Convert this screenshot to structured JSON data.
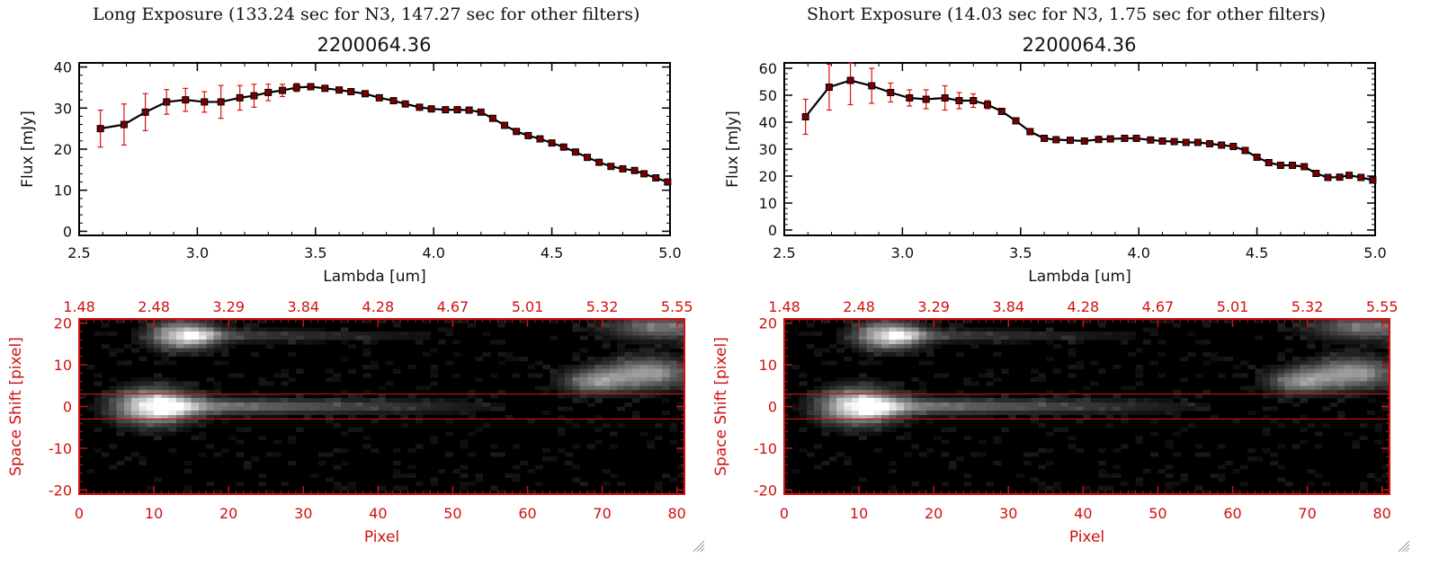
{
  "headings": {
    "left": "Long Exposure (133.24 sec for N3, 147.27 sec for other filters)",
    "right": "Short Exposure (14.03 sec for N3, 1.75 sec for other filters)"
  },
  "colors": {
    "axis_red": "#d01010",
    "error_bar": "#dd1111",
    "marker_fill": "#7a0000",
    "line": "#000000",
    "band_line": "#cc1010"
  },
  "chart_data": [
    {
      "type": "line",
      "panel": "left-spectrum",
      "title": "2200064.36",
      "xlabel": "Lambda [um]",
      "ylabel": "Flux [mJy]",
      "xlim": [
        2.5,
        5.0
      ],
      "ylim": [
        -1,
        41
      ],
      "xticks": [
        "2.5",
        "3.0",
        "3.5",
        "4.0",
        "4.5",
        "5.0"
      ],
      "xtick_values": [
        2.5,
        3.0,
        3.5,
        4.0,
        4.5,
        5.0
      ],
      "yticks": [
        "0",
        "10",
        "20",
        "30",
        "40"
      ],
      "ytick_values": [
        0,
        10,
        20,
        30,
        40
      ],
      "x": [
        2.59,
        2.69,
        2.78,
        2.87,
        2.95,
        3.03,
        3.1,
        3.18,
        3.24,
        3.3,
        3.36,
        3.42,
        3.48,
        3.54,
        3.6,
        3.65,
        3.71,
        3.77,
        3.83,
        3.88,
        3.94,
        3.99,
        4.05,
        4.1,
        4.15,
        4.2,
        4.25,
        4.3,
        4.35,
        4.4,
        4.45,
        4.5,
        4.55,
        4.6,
        4.65,
        4.7,
        4.75,
        4.8,
        4.85,
        4.89,
        4.94,
        4.99
      ],
      "y": [
        25.0,
        26.0,
        29.0,
        31.5,
        32.0,
        31.5,
        31.5,
        32.5,
        33.0,
        33.8,
        34.3,
        35.0,
        35.2,
        34.8,
        34.4,
        34.0,
        33.5,
        32.5,
        31.8,
        31.0,
        30.2,
        29.8,
        29.6,
        29.6,
        29.5,
        29.0,
        27.5,
        25.8,
        24.3,
        23.3,
        22.5,
        21.5,
        20.5,
        19.3,
        18.0,
        16.8,
        15.8,
        15.2,
        14.8,
        14.0,
        13.0,
        12.0
      ],
      "yerr": [
        4.5,
        5.0,
        4.5,
        3.0,
        2.8,
        2.5,
        4.0,
        3.0,
        2.8,
        2.0,
        1.5,
        1.0,
        0.5,
        0.4,
        0.4,
        0.4,
        0.4,
        0.4,
        0.4,
        0.4,
        0.4,
        0.4,
        0.4,
        0.4,
        0.4,
        0.4,
        0.4,
        0.4,
        0.4,
        0.4,
        0.4,
        0.4,
        0.4,
        0.4,
        0.4,
        0.4,
        0.4,
        0.4,
        0.4,
        0.4,
        0.4,
        0.6
      ]
    },
    {
      "type": "line",
      "panel": "right-spectrum",
      "title": "2200064.36",
      "xlabel": "Lambda [um]",
      "ylabel": "Flux [mJy]",
      "xlim": [
        2.5,
        5.0
      ],
      "ylim": [
        -2,
        62
      ],
      "xticks": [
        "2.5",
        "3.0",
        "3.5",
        "4.0",
        "4.5",
        "5.0"
      ],
      "xtick_values": [
        2.5,
        3.0,
        3.5,
        4.0,
        4.5,
        5.0
      ],
      "yticks": [
        "0",
        "10",
        "20",
        "30",
        "40",
        "50",
        "60"
      ],
      "ytick_values": [
        0,
        10,
        20,
        30,
        40,
        50,
        60
      ],
      "x": [
        2.59,
        2.69,
        2.78,
        2.87,
        2.95,
        3.03,
        3.1,
        3.18,
        3.24,
        3.3,
        3.36,
        3.42,
        3.48,
        3.54,
        3.6,
        3.65,
        3.71,
        3.77,
        3.83,
        3.88,
        3.94,
        3.99,
        4.05,
        4.1,
        4.15,
        4.2,
        4.25,
        4.3,
        4.35,
        4.4,
        4.45,
        4.5,
        4.55,
        4.6,
        4.65,
        4.7,
        4.75,
        4.8,
        4.85,
        4.89,
        4.94,
        4.99
      ],
      "y": [
        42.0,
        53.0,
        55.5,
        53.5,
        51.0,
        49.0,
        48.5,
        49.0,
        48.0,
        48.0,
        46.5,
        44.0,
        40.5,
        36.5,
        34.0,
        33.5,
        33.3,
        33.0,
        33.6,
        33.8,
        34.0,
        34.0,
        33.4,
        33.0,
        32.8,
        32.5,
        32.5,
        32.0,
        31.5,
        31.0,
        29.5,
        27.0,
        25.0,
        24.0,
        24.0,
        23.5,
        21.0,
        19.5,
        19.6,
        20.3,
        19.5,
        18.5
      ],
      "yerr": [
        6.5,
        8.5,
        9.0,
        6.5,
        3.5,
        3.0,
        3.5,
        4.5,
        3.0,
        2.5,
        1.5,
        1.0,
        0.5,
        0.5,
        0.5,
        0.5,
        0.5,
        0.5,
        0.5,
        0.5,
        0.5,
        0.5,
        0.5,
        0.5,
        0.5,
        0.5,
        0.5,
        0.5,
        0.5,
        0.5,
        0.5,
        0.5,
        0.5,
        0.5,
        0.5,
        0.5,
        0.5,
        0.5,
        0.5,
        0.5,
        0.5,
        0.8
      ]
    },
    {
      "type": "heatmap",
      "panel": "left-image",
      "xlabel": "Pixel",
      "ylabel": "Space Shift [pixel]",
      "xlim": [
        0,
        81
      ],
      "ylim": [
        -21,
        21
      ],
      "xticks": [
        "0",
        "10",
        "20",
        "30",
        "40",
        "50",
        "60",
        "70",
        "80"
      ],
      "xtick_values": [
        0,
        10,
        20,
        30,
        40,
        50,
        60,
        70,
        80
      ],
      "yticks": [
        "20",
        "10",
        "0",
        "-10",
        "-20"
      ],
      "ytick_values": [
        20,
        10,
        0,
        -10,
        -20
      ],
      "top_ticks": [
        "1.48",
        "2.48",
        "3.29",
        "3.84",
        "4.28",
        "4.67",
        "5.01",
        "5.32",
        "5.55"
      ],
      "top_tick_values": [
        0,
        10,
        20,
        30,
        40,
        50,
        60,
        70,
        80
      ],
      "band": [
        -3,
        3
      ],
      "sources": [
        {
          "px": 10,
          "sy": 0,
          "peak": 1.0,
          "width": 3.5,
          "height": 2.8,
          "tail_to": 62,
          "tail_level": 0.55
        },
        {
          "px": 14,
          "sy": 17,
          "peak": 0.85,
          "width": 3,
          "height": 2.2,
          "tail_to": 55,
          "tail_level": 0.3
        },
        {
          "px": 69,
          "sy": 6,
          "peak": 0.5,
          "width": 3,
          "height": 2,
          "tail_to": 0,
          "tail_level": 0
        },
        {
          "px": 76,
          "sy": 8,
          "peak": 0.6,
          "width": 4,
          "height": 2.5,
          "tail_to": 0,
          "tail_level": 0
        },
        {
          "px": 78,
          "sy": 19,
          "peak": 0.45,
          "width": 5,
          "height": 2,
          "tail_to": 0,
          "tail_level": 0
        }
      ]
    },
    {
      "type": "heatmap",
      "panel": "right-image",
      "xlabel": "Pixel",
      "ylabel": "Space Shift [pixel]",
      "xlim": [
        0,
        81
      ],
      "ylim": [
        -21,
        21
      ],
      "xticks": [
        "0",
        "10",
        "20",
        "30",
        "40",
        "50",
        "60",
        "70",
        "80"
      ],
      "xtick_values": [
        0,
        10,
        20,
        30,
        40,
        50,
        60,
        70,
        80
      ],
      "yticks": [
        "20",
        "10",
        "0",
        "-10",
        "-20"
      ],
      "ytick_values": [
        20,
        10,
        0,
        -10,
        -20
      ],
      "top_ticks": [
        "1.48",
        "2.48",
        "3.29",
        "3.84",
        "4.28",
        "4.67",
        "5.01",
        "5.32",
        "5.55"
      ],
      "top_tick_values": [
        0,
        10,
        20,
        30,
        40,
        50,
        60,
        70,
        80
      ],
      "band": [
        -3,
        3
      ],
      "sources": [
        {
          "px": 10,
          "sy": 0,
          "peak": 1.0,
          "width": 3.5,
          "height": 2.8,
          "tail_to": 62,
          "tail_level": 0.55
        },
        {
          "px": 14,
          "sy": 17,
          "peak": 0.85,
          "width": 3,
          "height": 2.2,
          "tail_to": 55,
          "tail_level": 0.3
        },
        {
          "px": 69,
          "sy": 6,
          "peak": 0.5,
          "width": 3,
          "height": 2,
          "tail_to": 0,
          "tail_level": 0
        },
        {
          "px": 76,
          "sy": 8,
          "peak": 0.6,
          "width": 4,
          "height": 2.5,
          "tail_to": 0,
          "tail_level": 0
        },
        {
          "px": 78,
          "sy": 19,
          "peak": 0.45,
          "width": 5,
          "height": 2,
          "tail_to": 0,
          "tail_level": 0
        }
      ]
    }
  ]
}
